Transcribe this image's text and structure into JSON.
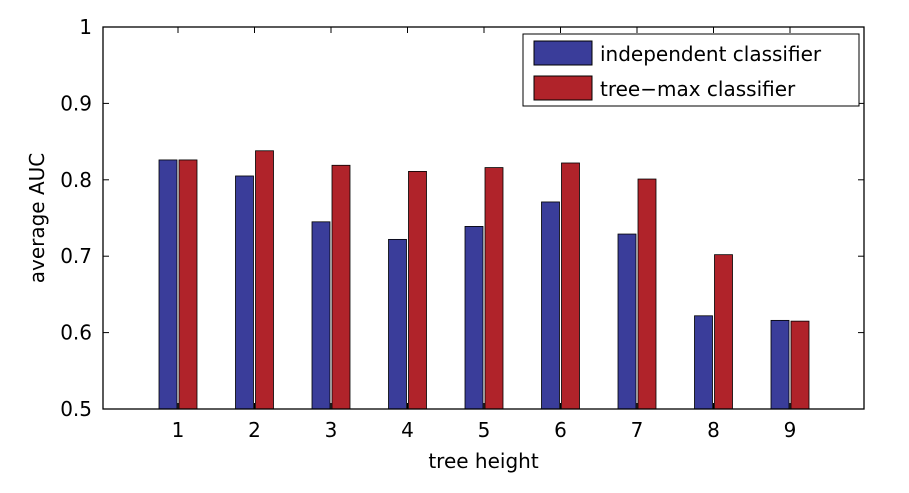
{
  "chart_data": {
    "type": "bar",
    "categories": [
      "1",
      "2",
      "3",
      "4",
      "5",
      "6",
      "7",
      "8",
      "9"
    ],
    "series": [
      {
        "name": "independent classifier",
        "color": "#3a3d9a",
        "values": [
          0.826,
          0.805,
          0.745,
          0.722,
          0.739,
          0.771,
          0.729,
          0.622,
          0.616
        ]
      },
      {
        "name": "tree−max classifier",
        "color": "#b0232a",
        "values": [
          0.826,
          0.838,
          0.819,
          0.811,
          0.816,
          0.822,
          0.801,
          0.702,
          0.615
        ]
      }
    ],
    "xlabel": "tree height",
    "ylabel": "average AUC",
    "ylim": [
      0.5,
      1.0
    ],
    "yticks": [
      0.5,
      0.6,
      0.7,
      0.8,
      0.9,
      1
    ],
    "ytick_labels": [
      "0.5",
      "0.6",
      "0.7",
      "0.8",
      "0.9",
      "1"
    ],
    "grid": false,
    "legend_position": "top-right"
  }
}
